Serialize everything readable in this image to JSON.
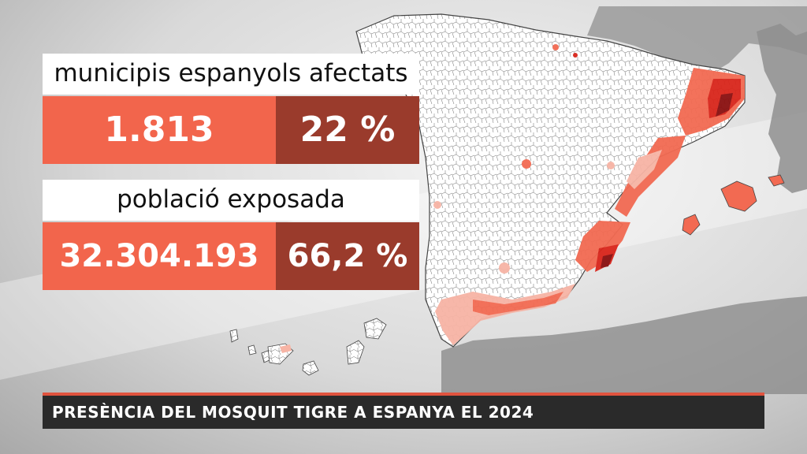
{
  "map": {
    "colors": {
      "land": "#ffffff",
      "outline": "#555555",
      "neighbor": "#8e8e8e",
      "sea": "#d7d7d7",
      "low": "#f7b4a5",
      "mid": "#f26a52",
      "high": "#d9251b",
      "max": "#8a0f0f"
    }
  },
  "stats": {
    "municipalities": {
      "label": "municipis espanyols afectats",
      "count": "1.813",
      "percent": "22 %"
    },
    "population": {
      "label": "població exposada",
      "count": "32.304.193",
      "percent": "66,2 %"
    }
  },
  "footer": {
    "title": "PRESÈNCIA DEL MOSQUIT TIGRE A ESPANYA EL 2024"
  }
}
